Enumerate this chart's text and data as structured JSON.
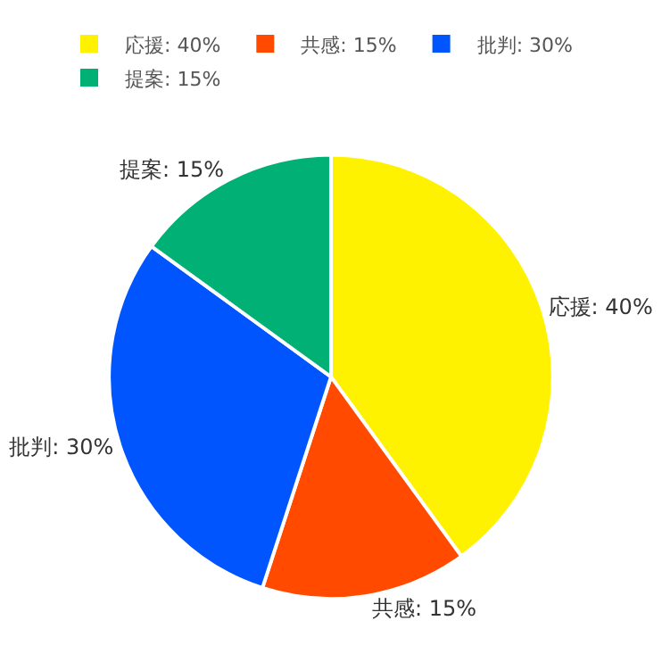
{
  "chart_data": {
    "type": "pie",
    "categories": [
      "応援: 40%",
      "共感: 15%",
      "批判: 30%",
      "提案: 15%"
    ],
    "values": [
      40,
      15,
      30,
      15
    ],
    "colors": [
      "#fff200",
      "#ff4a00",
      "#0055ff",
      "#00b074"
    ],
    "legend": "top left"
  }
}
